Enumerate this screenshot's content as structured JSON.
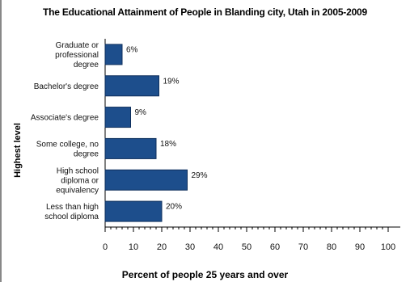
{
  "chart_data": {
    "type": "bar",
    "orientation": "horizontal",
    "title": "The Educational Attainment of People in Blanding city, Utah in 2005-2009",
    "xlabel": "Percent of people 25 years and over",
    "ylabel": "Highest level",
    "categories": [
      [
        "Graduate or",
        "professional",
        "degree"
      ],
      [
        "Bachelor's degree"
      ],
      [
        "Associate's degree"
      ],
      [
        "Some college, no",
        "degree"
      ],
      [
        "High school",
        "diploma or",
        "equivalency"
      ],
      [
        "Less than high",
        "school diploma"
      ]
    ],
    "values": [
      6,
      19,
      9,
      18,
      29,
      20
    ],
    "data_labels": [
      "6%",
      "19%",
      "9%",
      "18%",
      "29%",
      "20%"
    ],
    "xlim": [
      0,
      100
    ],
    "xticks": [
      0,
      10,
      20,
      30,
      40,
      50,
      60,
      70,
      80,
      90,
      100
    ],
    "bar_color": "#1d4e8c",
    "grid": false,
    "legend": "none"
  }
}
